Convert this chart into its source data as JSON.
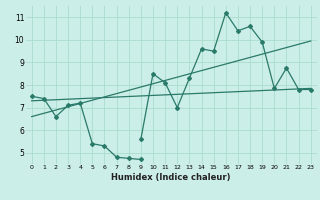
{
  "xlabel": "Humidex (Indice chaleur)",
  "bg_color": "#cceee8",
  "line_color": "#2a7a6a",
  "grid_color": "#aaddcc",
  "xlim": [
    -0.5,
    23.5
  ],
  "ylim": [
    4.5,
    11.5
  ],
  "yticks": [
    5,
    6,
    7,
    8,
    9,
    10,
    11
  ],
  "xticks": [
    0,
    1,
    2,
    3,
    4,
    5,
    6,
    7,
    8,
    9,
    10,
    11,
    12,
    13,
    14,
    15,
    16,
    17,
    18,
    19,
    20,
    21,
    22,
    23
  ],
  "series_low_x": [
    0,
    1,
    2,
    3,
    4,
    5,
    6,
    7,
    8,
    9
  ],
  "series_low_y": [
    7.5,
    7.4,
    6.6,
    7.1,
    7.2,
    5.4,
    5.3,
    4.8,
    4.75,
    4.7
  ],
  "series_high_x": [
    9,
    10,
    11,
    12,
    13,
    14,
    15,
    16,
    17,
    18,
    19,
    20,
    21,
    22,
    23
  ],
  "series_high_y": [
    5.6,
    8.5,
    8.1,
    7.0,
    8.3,
    9.6,
    9.5,
    11.2,
    10.4,
    10.6,
    9.9,
    7.85,
    8.75,
    7.8,
    7.8
  ],
  "trend1_x": [
    0,
    23
  ],
  "trend1_y": [
    7.3,
    7.85
  ],
  "trend2_x": [
    0,
    23
  ],
  "trend2_y": [
    6.6,
    9.95
  ]
}
